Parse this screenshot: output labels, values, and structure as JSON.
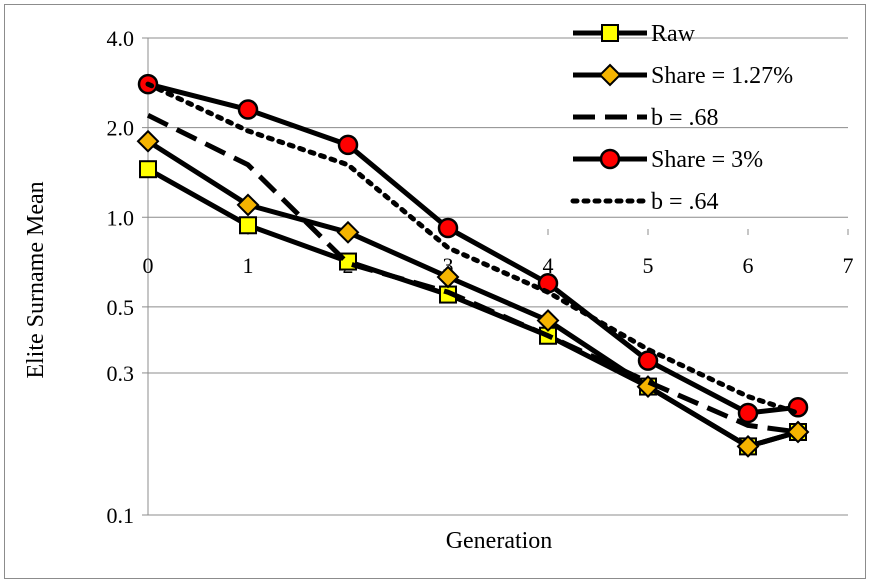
{
  "chart_data": {
    "type": "line",
    "title": "",
    "xlabel": "Generation",
    "ylabel": "Elite Surname Mean",
    "xlim": [
      0,
      7
    ],
    "xticks": [
      "0",
      "1",
      "2",
      "3",
      "4",
      "5",
      "6",
      "7"
    ],
    "ylim": [
      0.1,
      4.0
    ],
    "y_scale": "log",
    "yticks": [
      "4.0",
      "2.0",
      "1.0",
      "0.5",
      "0.3",
      "0.1"
    ],
    "grid": "horizontal",
    "legend_position": "top-right",
    "series": [
      {
        "name": "Raw",
        "style": "solid",
        "marker": "square",
        "color": "#000000",
        "marker_color": "#ffff00",
        "x": [
          0,
          1,
          2,
          3,
          4,
          5,
          6,
          6.5
        ],
        "y": [
          1.45,
          0.94,
          0.71,
          0.55,
          0.4,
          0.27,
          0.17,
          0.19
        ]
      },
      {
        "name": "Share = 1.27%",
        "style": "solid",
        "marker": "diamond",
        "color": "#000000",
        "marker_color": "#f5b400",
        "x": [
          0,
          1,
          2,
          3,
          4,
          5,
          6,
          6.5
        ],
        "y": [
          1.8,
          1.1,
          0.89,
          0.63,
          0.45,
          0.27,
          0.17,
          0.19
        ]
      },
      {
        "name": "b = .68",
        "style": "dashed",
        "marker": "none",
        "color": "#000000",
        "x": [
          0,
          1,
          2,
          3,
          4,
          5,
          6,
          6.5
        ],
        "y": [
          2.2,
          1.5,
          0.7,
          0.56,
          0.4,
          0.28,
          0.2,
          0.19
        ]
      },
      {
        "name": "Share = 3%",
        "style": "solid",
        "marker": "circle",
        "color": "#000000",
        "marker_color": "#ff0000",
        "x": [
          0,
          1,
          2,
          3,
          4,
          5,
          6,
          6.5
        ],
        "y": [
          2.8,
          2.3,
          1.75,
          0.92,
          0.6,
          0.33,
          0.22,
          0.23
        ]
      },
      {
        "name": "b = .64",
        "style": "dotted",
        "marker": "none",
        "color": "#000000",
        "x": [
          0,
          1,
          2,
          3,
          4,
          5,
          6,
          6.5
        ],
        "y": [
          2.8,
          1.95,
          1.5,
          0.79,
          0.56,
          0.36,
          0.25,
          0.22
        ]
      }
    ]
  }
}
